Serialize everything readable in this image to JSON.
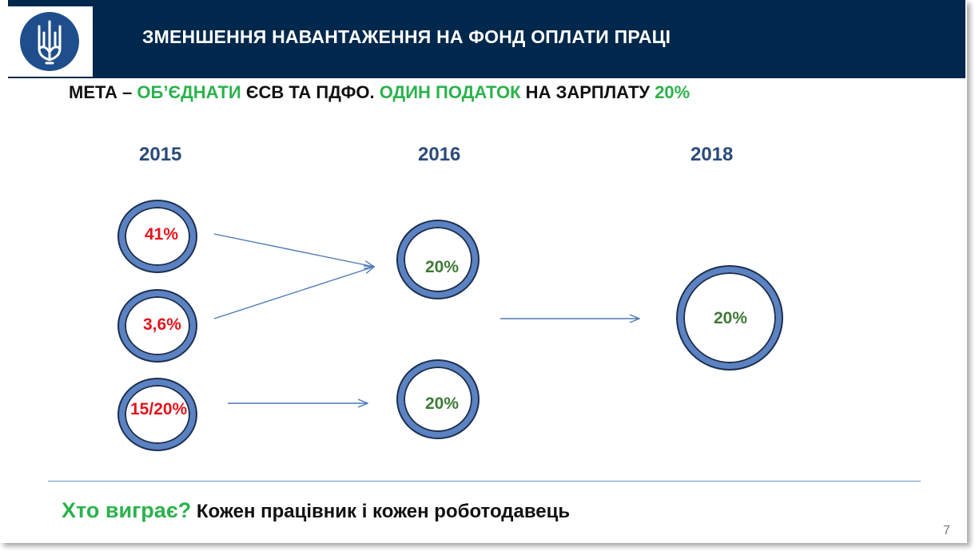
{
  "header": {
    "title": "ЗМЕНШЕННЯ НАВАНТАЖЕННЯ НА ФОНД ОПЛАТИ ПРАЦІ"
  },
  "goal": {
    "part1": "МЕТА – ",
    "part2": "ОБ’ЄДНАТИ",
    "part3": " ЄСВ ТА ПДФО. ",
    "part4": "ОДИН ПОДАТОК",
    "part5": " НА ЗАРПЛАТУ ",
    "part6": "20%"
  },
  "years": [
    "2015",
    "2016",
    "2018"
  ],
  "circles": {
    "y2015": [
      "41%",
      "3,6%",
      "15/20%"
    ],
    "y2016": [
      "20%",
      "20%"
    ],
    "y2018": [
      "20%"
    ]
  },
  "footer": {
    "question": "Хто виграє?",
    "answer": " Кожен працівник і кожен роботодавець"
  },
  "page_number": "7",
  "colors": {
    "header_bg": "#00284c",
    "accent_green": "#2bb24c",
    "value_red": "#e3141b",
    "value_green": "#3f7a36",
    "ring_blue": "#5b82c2",
    "year_blue": "#2b4a7a"
  },
  "icons": [
    "trident-emblem-icon"
  ]
}
